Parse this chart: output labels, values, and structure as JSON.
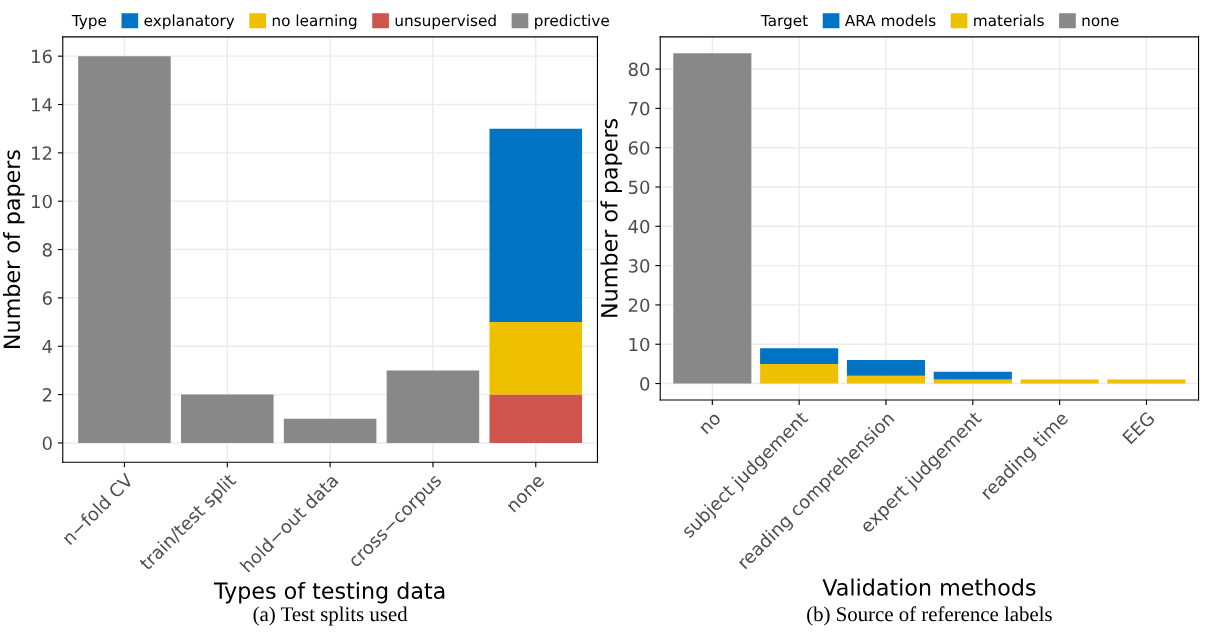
{
  "chart_data": [
    {
      "type": "bar",
      "stacked": true,
      "xlabel": "Types of testing data",
      "ylabel": "Number of papers",
      "legend_title": "Type",
      "legend": "top",
      "grid": true,
      "categories": [
        "n−fold CV",
        "train/test split",
        "hold−out data",
        "cross−corpus",
        "none"
      ],
      "ylim": [
        -0.8,
        16.8
      ],
      "yticks": [
        0,
        2,
        4,
        6,
        8,
        10,
        12,
        14,
        16
      ],
      "series": [
        {
          "name": "predictive",
          "color": "#888888",
          "values": [
            16,
            2,
            1,
            3,
            null
          ]
        },
        {
          "name": "unsupervised",
          "color": "#d0544e",
          "values": [
            null,
            null,
            null,
            null,
            2
          ]
        },
        {
          "name": "no learning",
          "color": "#efc000",
          "values": [
            null,
            null,
            null,
            null,
            3
          ]
        },
        {
          "name": "explanatory",
          "color": "#0073c2",
          "values": [
            null,
            null,
            null,
            null,
            8
          ]
        }
      ],
      "annotations": [
        "(a) Test splits used"
      ]
    },
    {
      "type": "bar",
      "stacked": true,
      "xlabel": "Validation methods",
      "ylabel": "Number of papers",
      "legend_title": "Target",
      "legend": "top",
      "grid": true,
      "categories": [
        "no",
        "subject judgement",
        "reading comprehension",
        "expert judgement",
        "reading time",
        "EEG"
      ],
      "ylim": [
        -4.2,
        88.2
      ],
      "yticks": [
        0,
        10,
        20,
        30,
        40,
        50,
        60,
        70,
        80
      ],
      "series": [
        {
          "name": "none",
          "color": "#888888",
          "values": [
            84,
            null,
            null,
            null,
            null,
            null
          ]
        },
        {
          "name": "materials",
          "color": "#efc000",
          "values": [
            null,
            5,
            2,
            1,
            1,
            1
          ]
        },
        {
          "name": "ARA models",
          "color": "#0073c2",
          "values": [
            null,
            4,
            4,
            2,
            null,
            null
          ]
        }
      ],
      "annotations": [
        "(b) Source of reference labels"
      ]
    }
  ]
}
